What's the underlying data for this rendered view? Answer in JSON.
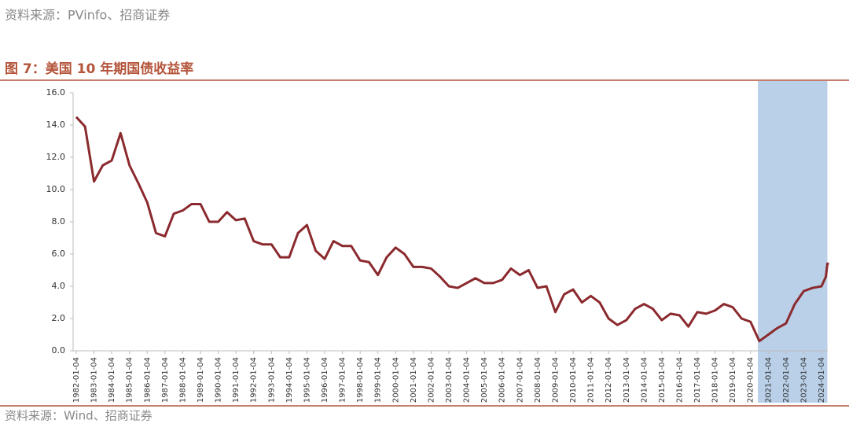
{
  "header": {
    "source": "资料来源：PVinfo、招商证券"
  },
  "footer": {
    "source": "资料来源：Wind、招商证券"
  },
  "chart_data": {
    "type": "line",
    "title": "图 7：美国 10 年期国债收益率",
    "x": [
      "1982-01-04",
      "1982-07-04",
      "1983-01-04",
      "1983-07-04",
      "1984-01-04",
      "1984-07-04",
      "1985-01-04",
      "1985-07-04",
      "1986-01-04",
      "1986-07-04",
      "1987-01-04",
      "1987-07-04",
      "1988-01-04",
      "1988-07-04",
      "1989-01-04",
      "1989-07-04",
      "1990-01-04",
      "1990-07-04",
      "1991-01-04",
      "1991-07-04",
      "1992-01-04",
      "1992-07-04",
      "1993-01-04",
      "1993-07-04",
      "1994-01-04",
      "1994-07-04",
      "1995-01-04",
      "1995-07-04",
      "1996-01-04",
      "1996-07-04",
      "1997-01-04",
      "1997-07-04",
      "1998-01-04",
      "1998-07-04",
      "1999-01-04",
      "1999-07-04",
      "2000-01-04",
      "2000-07-04",
      "2001-01-04",
      "2001-07-04",
      "2002-01-04",
      "2002-07-04",
      "2003-01-04",
      "2003-07-04",
      "2004-01-04",
      "2004-07-04",
      "2005-01-04",
      "2005-07-04",
      "2006-01-04",
      "2006-07-04",
      "2007-01-04",
      "2007-07-04",
      "2008-01-04",
      "2008-07-04",
      "2009-01-04",
      "2009-07-04",
      "2010-01-04",
      "2010-07-04",
      "2011-01-04",
      "2011-07-04",
      "2012-01-04",
      "2012-07-04",
      "2013-01-04",
      "2013-07-04",
      "2014-01-04",
      "2014-07-04",
      "2015-01-04",
      "2015-07-04",
      "2016-01-04",
      "2016-07-04",
      "2017-01-04",
      "2017-07-04",
      "2018-01-04",
      "2018-07-04",
      "2019-01-04",
      "2019-07-04",
      "2020-01-04",
      "2020-07-04",
      "2021-01-04",
      "2021-07-04",
      "2022-01-04",
      "2022-07-04",
      "2023-01-04",
      "2023-07-04",
      "2024-01-04",
      "2024-04-04",
      "2024-05-04",
      "2024-06-04"
    ],
    "series": [
      {
        "color": "#8b2a2e",
        "values": [
          14.5,
          13.9,
          10.5,
          11.5,
          11.8,
          13.5,
          11.5,
          10.4,
          9.2,
          7.3,
          7.1,
          8.5,
          8.7,
          9.1,
          9.1,
          8.0,
          8.0,
          8.6,
          8.1,
          8.2,
          6.8,
          6.6,
          6.6,
          5.8,
          5.8,
          7.3,
          7.8,
          6.2,
          5.7,
          6.8,
          6.5,
          6.5,
          5.6,
          5.5,
          4.7,
          5.8,
          6.4,
          6.0,
          5.2,
          5.2,
          5.1,
          4.6,
          4.0,
          3.9,
          4.2,
          4.5,
          4.2,
          4.2,
          4.4,
          5.1,
          4.7,
          5.0,
          3.9,
          4.0,
          2.4,
          3.5,
          3.8,
          3.0,
          3.4,
          3.0,
          2.0,
          1.6,
          1.9,
          2.6,
          2.9,
          2.6,
          1.9,
          2.3,
          2.2,
          1.5,
          2.4,
          2.3,
          2.5,
          2.9,
          2.7,
          2.0,
          1.8,
          0.6,
          1.0,
          1.4,
          1.7,
          2.9,
          3.7,
          3.9,
          4.0,
          4.6,
          5.4,
          5.4
        ]
      }
    ],
    "xticks": [
      "1982-01-04",
      "1983-01-04",
      "1984-01-04",
      "1985-01-04",
      "1986-01-04",
      "1987-01-04",
      "1988-01-04",
      "1989-01-04",
      "1990-01-04",
      "1991-01-04",
      "1992-01-04",
      "1993-01-04",
      "1994-01-04",
      "1995-01-04",
      "1996-01-04",
      "1997-01-04",
      "1998-01-04",
      "1999-01-04",
      "2000-01-04",
      "2001-01-04",
      "2002-01-04",
      "2003-01-04",
      "2004-01-04",
      "2005-01-04",
      "2006-01-04",
      "2007-01-04",
      "2008-01-04",
      "2009-01-04",
      "2010-01-04",
      "2011-01-04",
      "2012-01-04",
      "2013-01-04",
      "2014-01-04",
      "2015-01-04",
      "2016-01-04",
      "2017-01-04",
      "2018-01-04",
      "2019-01-04",
      "2020-01-04",
      "2021-01-04",
      "2022-01-04",
      "2023-01-04",
      "2024-01-04"
    ],
    "ylim": [
      0,
      16
    ],
    "yticks": [
      {
        "value": 0,
        "label": "0.0"
      },
      {
        "value": 2,
        "label": "2.0"
      },
      {
        "value": 4,
        "label": "4.0"
      },
      {
        "value": 6,
        "label": "6.0"
      },
      {
        "value": 8,
        "label": "8.0"
      },
      {
        "value": 10,
        "label": "10.0"
      },
      {
        "value": 12,
        "label": "12.0"
      },
      {
        "value": 14,
        "label": "14.0"
      },
      {
        "value": 16,
        "label": "16.0"
      }
    ],
    "shade": {
      "from": "2020-06-04",
      "to": "2024-05-04",
      "color": "#b9d0e8"
    }
  }
}
